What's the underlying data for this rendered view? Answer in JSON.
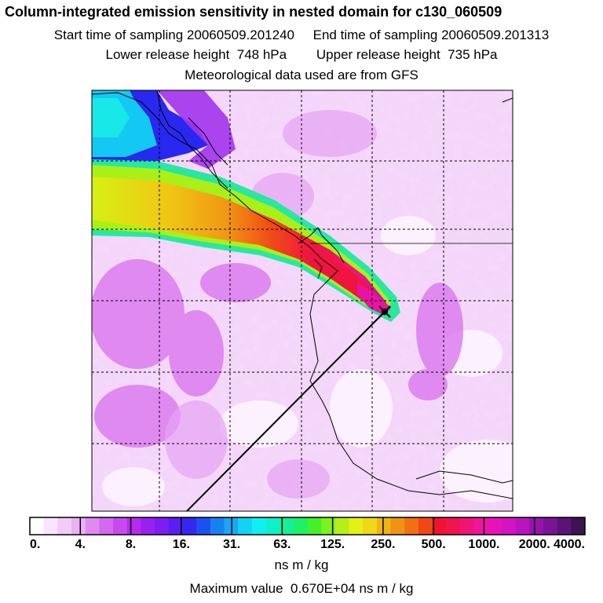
{
  "title": "Column-integrated emission sensitivity in nested domain for c130_060509",
  "line2": "Start time of sampling 20060509.201240     End time of sampling 20060509.201313",
  "line3": "Lower release height  748 hPa        Upper release height  735 hPa",
  "line4": "Meteorological data used are from GFS",
  "units_label": "ns m / kg",
  "max_value_text": "Maximum value  0.670E+04 ns m / kg",
  "chart_data": {
    "type": "heatmap",
    "title": "Column-integrated emission sensitivity in nested domain for c130_060509",
    "colorbar": {
      "scale": "log",
      "unit": "ns m / kg",
      "tick_labels": [
        "0.",
        "4.",
        "8.",
        "16.",
        "31.",
        "63.",
        "125.",
        "250.",
        "500.",
        "1000.",
        "2000.",
        "4000."
      ],
      "colors": [
        "#ffffff",
        "#fae6fc",
        "#f3cbf8",
        "#ecb0f4",
        "#e08af0",
        "#d36aee",
        "#c84aee",
        "#b62cec",
        "#9a20f0",
        "#7c1ef0",
        "#5a1ef0",
        "#3428f0",
        "#1e50f0",
        "#1a80f2",
        "#18a8f4",
        "#14d2f6",
        "#10f0f0",
        "#10f0c8",
        "#14f098",
        "#1ef068",
        "#44f028",
        "#7cf020",
        "#b4f018",
        "#e6f014",
        "#f0d814",
        "#f0b414",
        "#f09214",
        "#f07014",
        "#f04814",
        "#f01432",
        "#f01450",
        "#f01478",
        "#f0149e",
        "#e614b8",
        "#d214c2",
        "#b814c0",
        "#9614ae",
        "#7a1496",
        "#5a1478",
        "#3c1450"
      ]
    },
    "maximum_value": 6700,
    "release_point": "marked with X at end of plume",
    "grid": true
  }
}
